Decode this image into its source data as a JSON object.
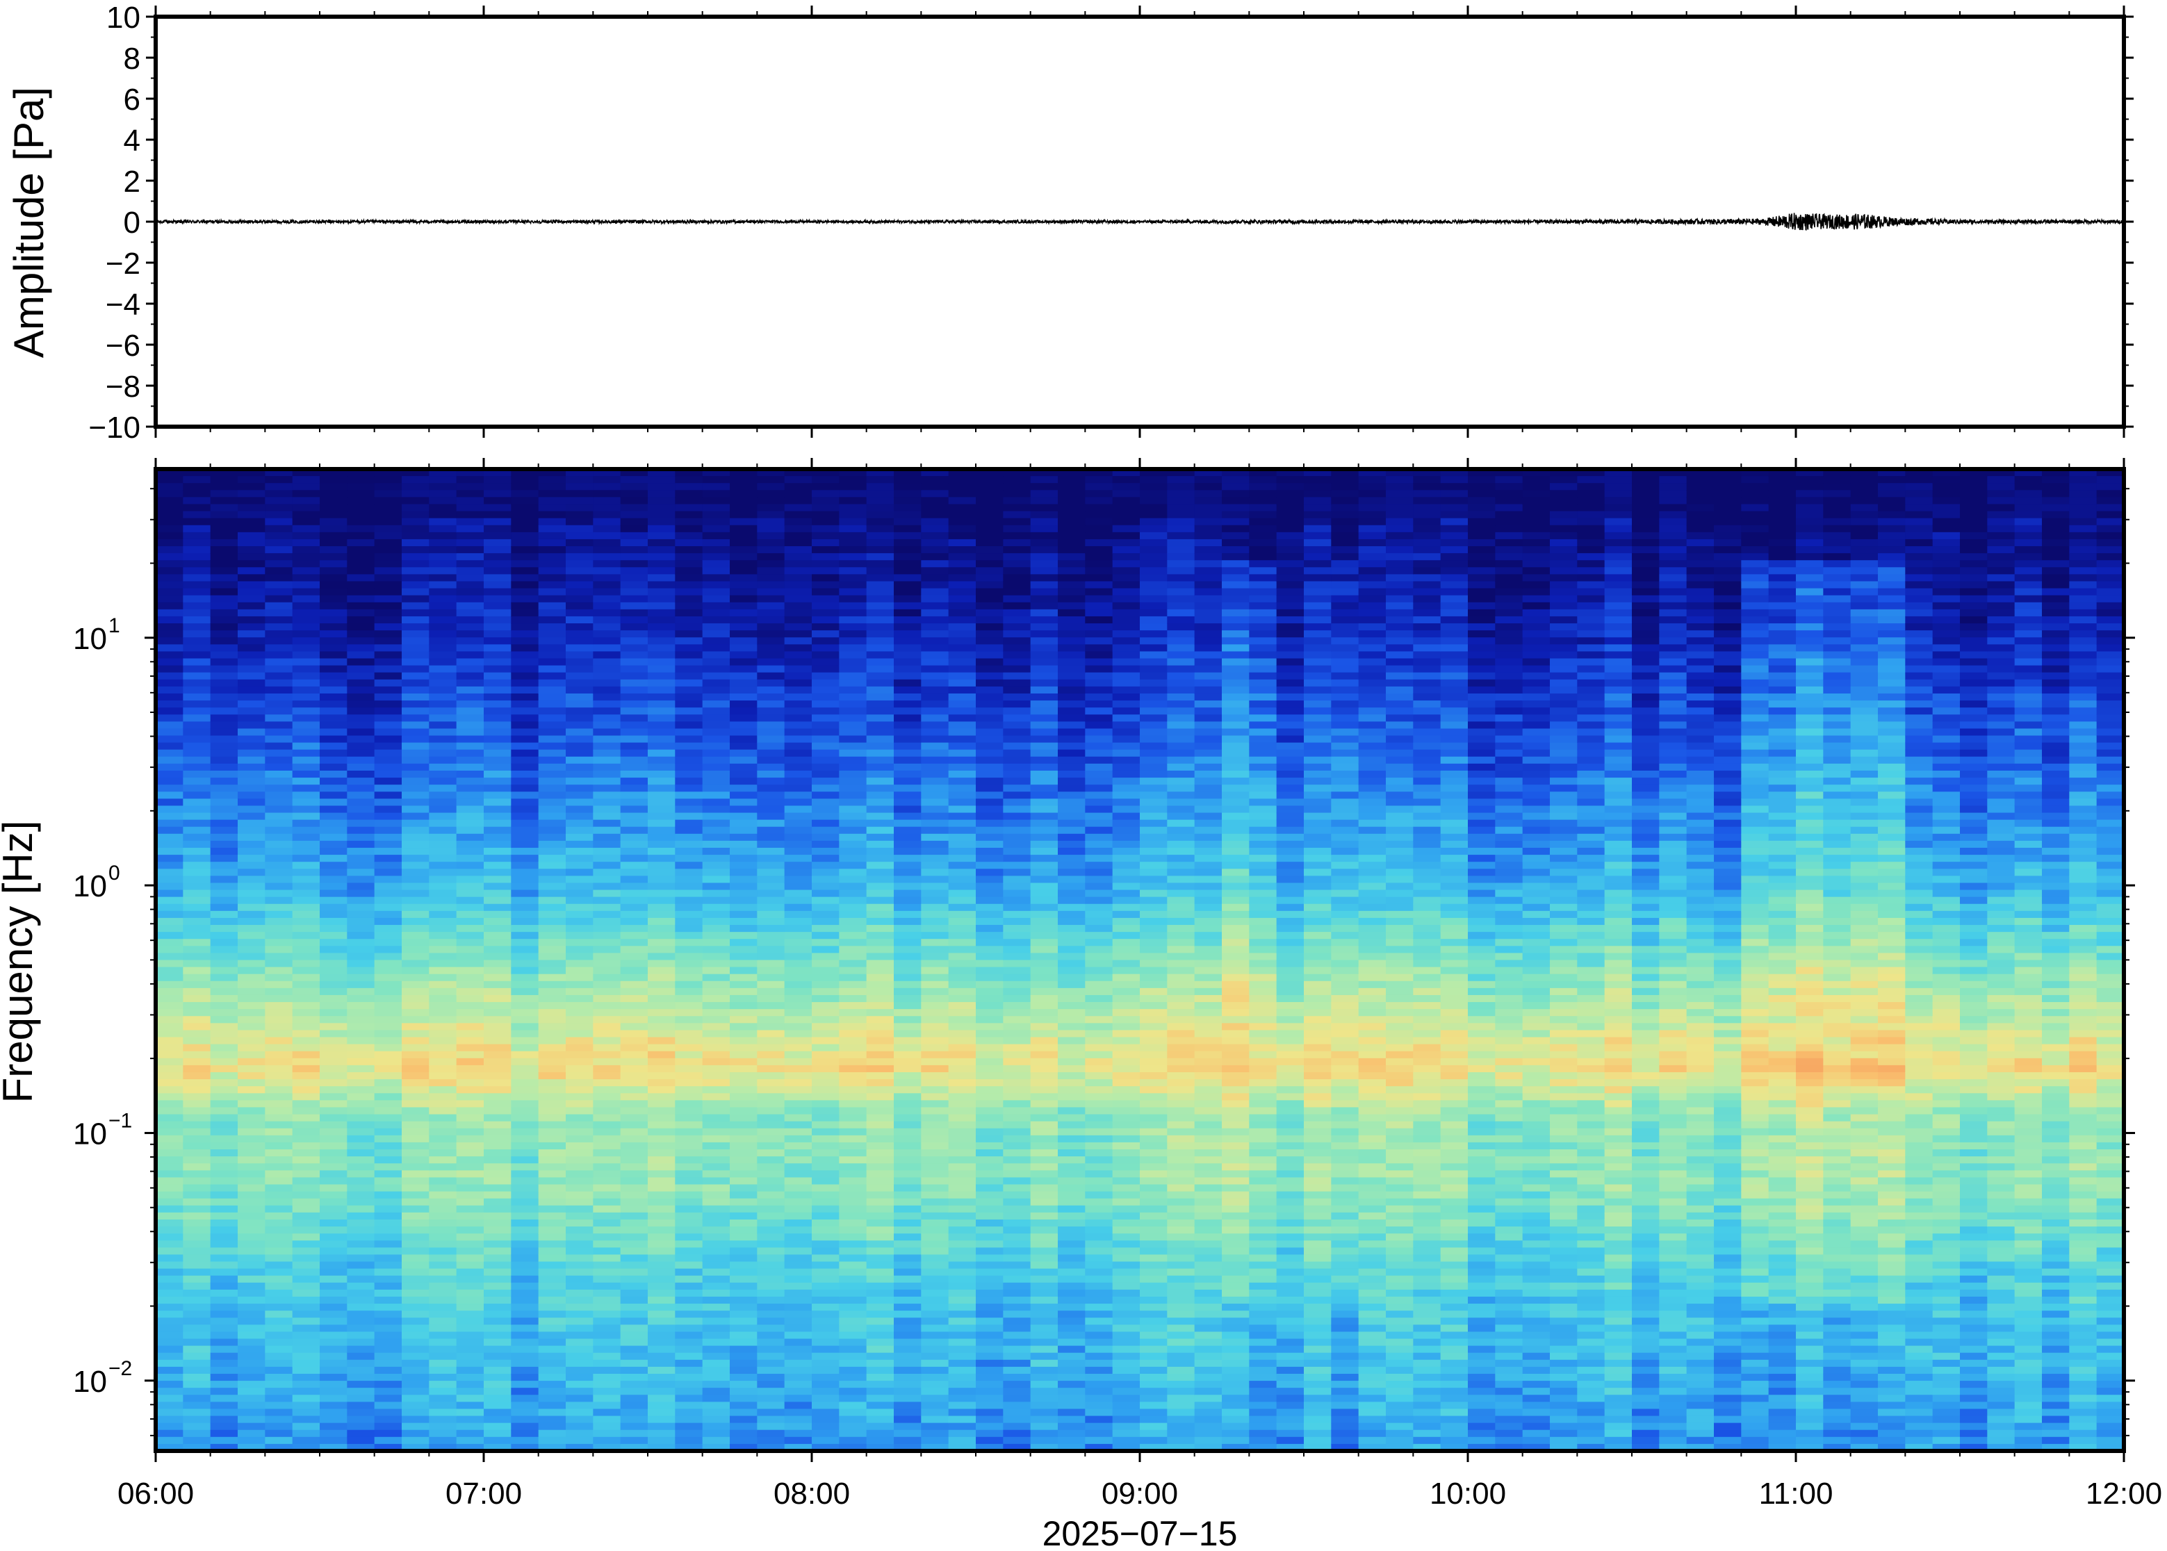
{
  "chart_data": [
    {
      "type": "line",
      "title": "",
      "xlabel": "",
      "ylabel": "Amplitude [Pa]",
      "ylim": [
        -10,
        10
      ],
      "yticks": [
        "10",
        "8",
        "6",
        "4",
        "2",
        "0",
        "−2",
        "−4",
        "−6",
        "−8",
        "−10"
      ],
      "ytick_values": [
        10,
        8,
        6,
        4,
        2,
        0,
        -2,
        -4,
        -6,
        -8,
        -10
      ],
      "xlim": [
        "06:00",
        "12:00"
      ],
      "grid": false,
      "series": [
        {
          "x_hours": [
            6.0,
            6.5,
            7.0,
            7.5,
            8.0,
            8.5,
            9.0,
            9.5,
            10.0,
            10.5,
            10.9,
            11.0,
            11.1,
            11.2,
            11.3,
            11.5,
            12.0
          ],
          "amplitude_envelope": [
            0.08,
            0.07,
            0.07,
            0.08,
            0.06,
            0.07,
            0.07,
            0.09,
            0.08,
            0.1,
            0.15,
            0.45,
            0.35,
            0.4,
            0.2,
            0.1,
            0.08
          ]
        }
      ]
    },
    {
      "type": "heatmap",
      "title": "",
      "xlabel": "2025−07−15",
      "ylabel": "Frequency [Hz]",
      "yscale": "log",
      "ylim": [
        0.0052,
        48
      ],
      "yticks": [
        {
          "value": 10,
          "base": "10",
          "exp": "1"
        },
        {
          "value": 1,
          "base": "10",
          "exp": "0"
        },
        {
          "value": 0.1,
          "base": "10",
          "exp": "−1"
        },
        {
          "value": 0.01,
          "base": "10",
          "exp": "−2"
        }
      ],
      "xlim": [
        "06:00",
        "12:00"
      ],
      "xticks": [
        "06:00",
        "07:00",
        "08:00",
        "09:00",
        "10:00",
        "11:00",
        "12:00"
      ],
      "colormap": [
        "#0a0a6e",
        "#0c1fb4",
        "#1a55e6",
        "#2fa0f0",
        "#48cfe8",
        "#7de3c4",
        "#b6ebaa",
        "#eee58a",
        "#f9bf6e",
        "#f69a5c"
      ],
      "spectral_peak_hz": 0.18,
      "notes_visible": "",
      "intensity_profile_by_frequency": [
        {
          "freq_hz": 48,
          "level": 0.0
        },
        {
          "freq_hz": 20,
          "level": 0.06
        },
        {
          "freq_hz": 10,
          "level": 0.12
        },
        {
          "freq_hz": 3,
          "level": 0.25
        },
        {
          "freq_hz": 1,
          "level": 0.38
        },
        {
          "freq_hz": 0.5,
          "level": 0.55
        },
        {
          "freq_hz": 0.25,
          "level": 0.72
        },
        {
          "freq_hz": 0.18,
          "level": 0.8
        },
        {
          "freq_hz": 0.12,
          "level": 0.6
        },
        {
          "freq_hz": 0.06,
          "level": 0.58
        },
        {
          "freq_hz": 0.025,
          "level": 0.45
        },
        {
          "freq_hz": 0.0052,
          "level": 0.33
        }
      ],
      "bright_segments_hours": [
        {
          "from": 9.25,
          "to": 9.45,
          "level_boost": 0.12
        },
        {
          "from": 9.55,
          "to": 9.7,
          "level_boost": 0.1
        },
        {
          "from": 10.85,
          "to": 11.3,
          "level_boost": 0.15
        }
      ]
    }
  ]
}
